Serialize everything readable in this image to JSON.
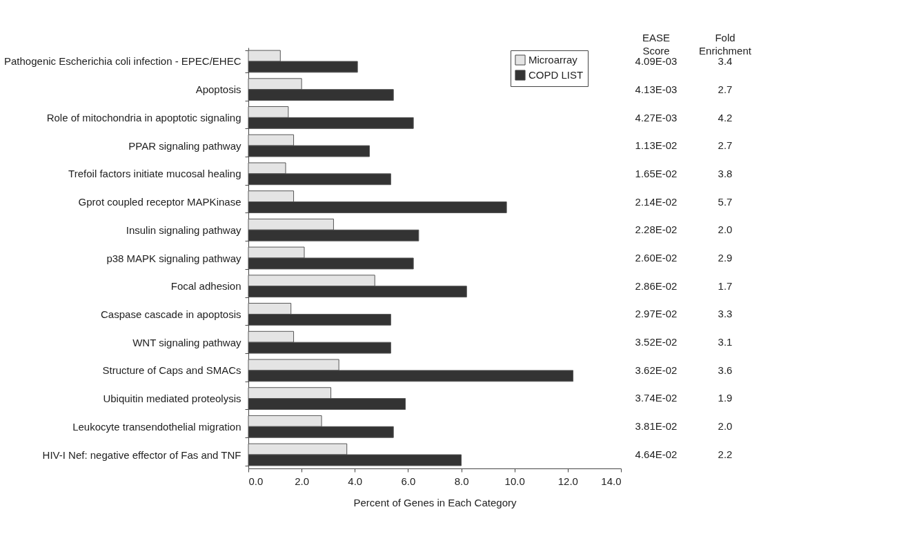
{
  "chart_data": {
    "type": "bar",
    "orientation": "horizontal",
    "xlabel": "Percent of Genes in Each Category",
    "categories": [
      "Pathogenic Escherichia coli infection - EPEC/EHEC",
      "Apoptosis",
      "Role of mitochondria in apoptotic signaling",
      "PPAR signaling pathway",
      "Trefoil factors initiate mucosal healing",
      "Gprot coupled receptor MAPKinase",
      "Insulin signaling pathway",
      "p38 MAPK signaling pathway",
      "Focal adhesion",
      "Caspase cascade in apoptosis",
      "WNT signaling pathway",
      "Structure of Caps and SMACs",
      "Ubiquitin mediated proteolysis",
      "Leukocyte transendothelial migration",
      "HIV-I Nef: negative effector of Fas and TNF"
    ],
    "series": [
      {
        "name": "Microarray",
        "color": "#e4e4e4",
        "values": [
          1.2,
          2.0,
          1.5,
          1.7,
          1.4,
          1.7,
          3.2,
          2.1,
          4.75,
          1.6,
          1.7,
          3.4,
          3.1,
          2.75,
          3.7
        ]
      },
      {
        "name": "COPD LIST",
        "color": "#333333",
        "values": [
          4.1,
          5.45,
          6.2,
          4.55,
          5.35,
          9.7,
          6.4,
          6.2,
          8.2,
          5.35,
          5.35,
          12.2,
          5.9,
          5.45,
          8.0
        ]
      }
    ],
    "xlim": [
      0,
      14
    ],
    "xticks": [
      {
        "value": 0,
        "label": "0.0"
      },
      {
        "value": 2,
        "label": "2.0"
      },
      {
        "value": 4,
        "label": "4.0"
      },
      {
        "value": 6,
        "label": "6.0"
      },
      {
        "value": 8,
        "label": "8.0"
      },
      {
        "value": 10,
        "label": "10.0"
      },
      {
        "value": 12,
        "label": "12.0"
      },
      {
        "value": 14,
        "label": "14.0"
      }
    ],
    "grid": false,
    "legend": "top right",
    "annotations": [
      "EASE Score",
      "Fold Enrichment",
      "4.09E-03",
      "4.13E-03",
      "4.27E-03",
      "1.13E-02",
      "1.65E-02",
      "2.14E-02",
      "2.28E-02",
      "2.60E-02",
      "2.86E-02",
      "2.97E-02",
      "3.52E-02",
      "3.62E-02",
      "3.74E-02",
      "3.81E-02",
      "4.64E-02",
      "3.4",
      "2.7",
      "4.2",
      "2.7",
      "3.8",
      "5.7",
      "2.0",
      "2.9",
      "1.7",
      "3.3",
      "3.1",
      "3.6",
      "1.9",
      "2.0",
      "2.2"
    ]
  }
}
